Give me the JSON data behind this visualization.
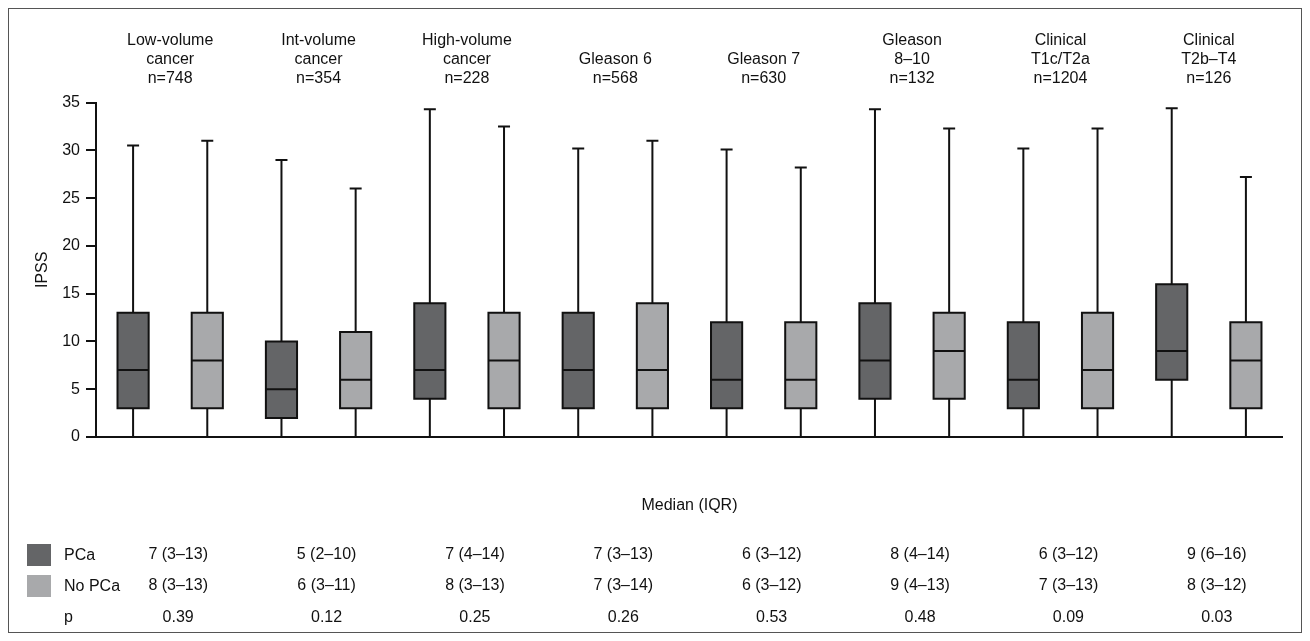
{
  "chart_data": {
    "type": "box",
    "ylabel": "IPSS",
    "ylim": [
      0,
      35
    ],
    "yticks": [
      0,
      5,
      10,
      15,
      20,
      25,
      30,
      35
    ],
    "grid": false,
    "legend": "bottom left",
    "categories": [
      "Low-volume\ncancer\nn=748",
      "Int-volume\ncancer\nn=354",
      "High-volume\ncancer\nn=228",
      "Gleason 6\nn=568",
      "Gleason 7\nn=630",
      "Gleason\n8–10\nn=132",
      "Clinical\nT1c/T2a\nn=1204",
      "Clinical\nT2b–T4\nn=126"
    ],
    "series": [
      {
        "name": "PCa",
        "color": "#646567",
        "value_labels": [
          "7 (3–13)",
          "5 (2–10)",
          "7 (4–14)",
          "7 (3–13)",
          "6 (3–12)",
          "8 (4–14)",
          "6 (3–12)",
          "9 (6–16)"
        ],
        "boxes": [
          {
            "low": 0,
            "q1": 3,
            "median": 7,
            "q3": 13,
            "high": 30.5
          },
          {
            "low": 0,
            "q1": 2,
            "median": 5,
            "q3": 10,
            "high": 29
          },
          {
            "low": 0,
            "q1": 4,
            "median": 7,
            "q3": 14,
            "high": 34.3
          },
          {
            "low": 0,
            "q1": 3,
            "median": 7,
            "q3": 13,
            "high": 30.2
          },
          {
            "low": 0,
            "q1": 3,
            "median": 6,
            "q3": 12,
            "high": 30.1
          },
          {
            "low": 0,
            "q1": 4,
            "median": 8,
            "q3": 14,
            "high": 34.3
          },
          {
            "low": 0,
            "q1": 3,
            "median": 6,
            "q3": 12,
            "high": 30.2
          },
          {
            "low": 0,
            "q1": 6,
            "median": 9,
            "q3": 16,
            "high": 34.4
          }
        ]
      },
      {
        "name": "No PCa",
        "color": "#a8a9ab",
        "value_labels": [
          "8 (3–13)",
          "6 (3–11)",
          "8 (3–13)",
          "7 (3–14)",
          "6 (3–12)",
          "9 (4–13)",
          "7 (3–13)",
          "8 (3–12)"
        ],
        "boxes": [
          {
            "low": 0,
            "q1": 3,
            "median": 8,
            "q3": 13,
            "high": 31
          },
          {
            "low": 0,
            "q1": 3,
            "median": 6,
            "q3": 11,
            "high": 26
          },
          {
            "low": 0,
            "q1": 3,
            "median": 8,
            "q3": 13,
            "high": 32.5
          },
          {
            "low": 0,
            "q1": 3,
            "median": 7,
            "q3": 14,
            "high": 31
          },
          {
            "low": 0,
            "q1": 3,
            "median": 6,
            "q3": 12,
            "high": 28.2
          },
          {
            "low": 0,
            "q1": 4,
            "median": 9,
            "q3": 13,
            "high": 32.3
          },
          {
            "low": 0,
            "q1": 3,
            "median": 7,
            "q3": 13,
            "high": 32.3
          },
          {
            "low": 0,
            "q1": 3,
            "median": 8,
            "q3": 12,
            "high": 27.2
          }
        ]
      }
    ],
    "annotations": [
      "Median (IQR)",
      "p",
      "0.39",
      "0.12",
      "0.25",
      "0.26",
      "0.53",
      "0.48",
      "0.09",
      "0.03"
    ]
  }
}
